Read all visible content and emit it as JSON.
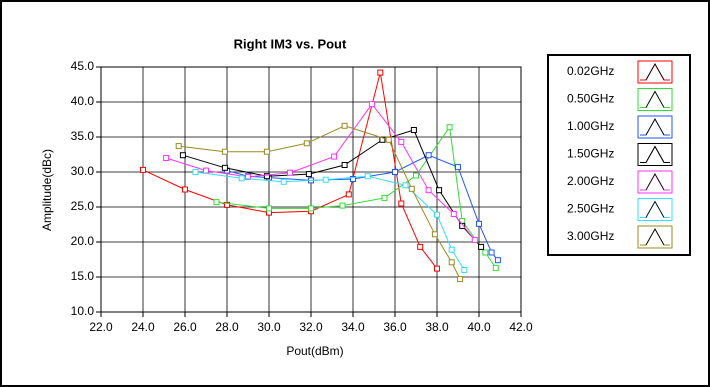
{
  "chart_data": {
    "type": "line",
    "title": "Right IM3 vs. Pout",
    "x_label": "Pout(dBm)",
    "y_label": "Amplitude(dBc)",
    "xlim": [
      22,
      42
    ],
    "ylim": [
      10,
      45
    ],
    "grid": true,
    "legend": "right",
    "xticks": [
      {
        "value": 22,
        "label": "22.0"
      },
      {
        "value": 24,
        "label": "24.0"
      },
      {
        "value": 26,
        "label": "26.0"
      },
      {
        "value": 28,
        "label": "28.0"
      },
      {
        "value": 30,
        "label": "30.0"
      },
      {
        "value": 32,
        "label": "32.0"
      },
      {
        "value": 34,
        "label": "34.0"
      },
      {
        "value": 36,
        "label": "36.0"
      },
      {
        "value": 38,
        "label": "38.0"
      },
      {
        "value": 40,
        "label": "40.0"
      },
      {
        "value": 42,
        "label": "42.0"
      }
    ],
    "yticks": [
      {
        "value": 10,
        "label": "10.0"
      },
      {
        "value": 15,
        "label": "15.0"
      },
      {
        "value": 20,
        "label": "20.0"
      },
      {
        "value": 25,
        "label": "25.0"
      },
      {
        "value": 30,
        "label": "30.0"
      },
      {
        "value": 35,
        "label": "35.0"
      },
      {
        "value": 40,
        "label": "40.0"
      },
      {
        "value": 45,
        "label": "45.0"
      }
    ],
    "series": [
      {
        "name": "0.02GHz",
        "color": "#ff0000",
        "x": [
          24,
          26,
          28,
          30,
          32,
          33.8,
          35.3,
          36.3,
          37.2,
          38
        ],
        "values": [
          30.3,
          27.5,
          25.3,
          24.2,
          24.4,
          26.8,
          44.2,
          25.5,
          19.3,
          16.2
        ]
      },
      {
        "name": "0.50GHz",
        "color": "#33dd33",
        "x": [
          27.5,
          30,
          32,
          33.5,
          35.5,
          37,
          38.6,
          39.2,
          40.3,
          40.8
        ],
        "values": [
          25.7,
          24.8,
          24.8,
          25.2,
          26.3,
          29.5,
          36.4,
          23.0,
          18.5,
          16.3
        ]
      },
      {
        "name": "1.00GHz",
        "color": "#2255ff",
        "x": [
          28,
          29,
          30,
          32,
          34,
          36,
          37.6,
          39,
          40,
          40.6,
          40.9
        ],
        "values": [
          30.2,
          29.4,
          29.2,
          28.8,
          29.0,
          30.0,
          32.4,
          30.7,
          22.6,
          18.5,
          17.4
        ]
      },
      {
        "name": "1.50GHz",
        "color": "#000000",
        "x": [
          25.9,
          27.9,
          29.9,
          31.9,
          33.6,
          35.4,
          36.9,
          38.1,
          39.2,
          40.1
        ],
        "values": [
          32.4,
          30.6,
          29.4,
          29.7,
          31.0,
          34.6,
          36.0,
          27.4,
          22.3,
          19.3
        ]
      },
      {
        "name": "2.00GHz",
        "color": "#ff33ff",
        "x": [
          25.1,
          27,
          29,
          31,
          33.1,
          34.9,
          36.3,
          37.6,
          38.8,
          39.8
        ],
        "values": [
          32.0,
          30.2,
          29.3,
          29.9,
          32.2,
          39.7,
          34.3,
          27.4,
          24.0,
          20.3
        ]
      },
      {
        "name": "2.50GHz",
        "color": "#33ddff",
        "x": [
          26.5,
          28.7,
          30.7,
          32.7,
          34.7,
          36.5,
          38,
          38.7,
          39.3
        ],
        "values": [
          30.0,
          29.1,
          28.6,
          28.9,
          29.4,
          28.1,
          23.9,
          18.9,
          16.0
        ]
      },
      {
        "name": "3.00GHz",
        "color": "#9c8a20",
        "x": [
          25.7,
          27.9,
          29.9,
          31.8,
          33.6,
          35.7,
          36.8,
          37.9,
          38.7,
          39.1
        ],
        "values": [
          33.7,
          32.9,
          32.9,
          34.1,
          36.6,
          34.6,
          27.6,
          21.1,
          17.1,
          14.7
        ]
      }
    ]
  }
}
